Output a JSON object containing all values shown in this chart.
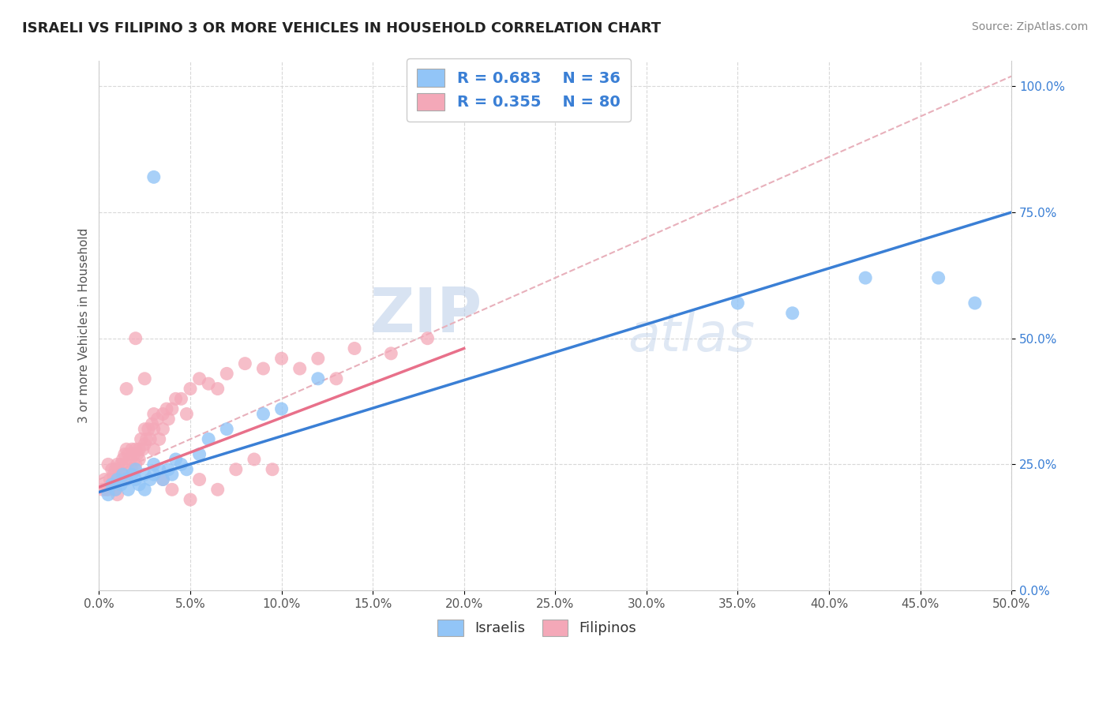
{
  "title": "ISRAELI VS FILIPINO 3 OR MORE VEHICLES IN HOUSEHOLD CORRELATION CHART",
  "source": "Source: ZipAtlas.com",
  "xlim": [
    0.0,
    0.5
  ],
  "ylim": [
    0.0,
    1.05
  ],
  "legend_r_israeli": "R = 0.683",
  "legend_n_israeli": "N = 36",
  "legend_r_filipino": "R = 0.355",
  "legend_n_filipino": "N = 80",
  "israeli_color": "#92c5f7",
  "filipino_color": "#f4a8b8",
  "israeli_line_color": "#3a7fd5",
  "filipino_line_color": "#e8708a",
  "dash_line_color": "#e8b0bb",
  "watermark_zip": "ZIP",
  "watermark_atlas": "atlas",
  "israeli_x": [
    0.005,
    0.007,
    0.009,
    0.01,
    0.012,
    0.013,
    0.015,
    0.016,
    0.018,
    0.02,
    0.02,
    0.022,
    0.025,
    0.025,
    0.028,
    0.03,
    0.03,
    0.033,
    0.035,
    0.038,
    0.04,
    0.042,
    0.045,
    0.048,
    0.055,
    0.06,
    0.07,
    0.09,
    0.1,
    0.12,
    0.35,
    0.38,
    0.42,
    0.46,
    0.48,
    0.03
  ],
  "israeli_y": [
    0.19,
    0.21,
    0.2,
    0.22,
    0.21,
    0.23,
    0.22,
    0.2,
    0.23,
    0.22,
    0.24,
    0.21,
    0.23,
    0.2,
    0.22,
    0.25,
    0.23,
    0.24,
    0.22,
    0.24,
    0.23,
    0.26,
    0.25,
    0.24,
    0.27,
    0.3,
    0.32,
    0.35,
    0.36,
    0.42,
    0.57,
    0.55,
    0.62,
    0.62,
    0.57,
    0.82
  ],
  "filipino_x": [
    0.002,
    0.003,
    0.004,
    0.005,
    0.005,
    0.006,
    0.007,
    0.007,
    0.008,
    0.008,
    0.009,
    0.009,
    0.01,
    0.01,
    0.01,
    0.011,
    0.012,
    0.012,
    0.013,
    0.013,
    0.014,
    0.015,
    0.015,
    0.015,
    0.016,
    0.017,
    0.018,
    0.018,
    0.019,
    0.02,
    0.02,
    0.021,
    0.022,
    0.022,
    0.023,
    0.024,
    0.025,
    0.025,
    0.026,
    0.027,
    0.028,
    0.029,
    0.03,
    0.03,
    0.032,
    0.033,
    0.035,
    0.035,
    0.037,
    0.038,
    0.04,
    0.042,
    0.045,
    0.048,
    0.05,
    0.055,
    0.06,
    0.065,
    0.07,
    0.08,
    0.09,
    0.1,
    0.12,
    0.14,
    0.16,
    0.18,
    0.02,
    0.025,
    0.015,
    0.03,
    0.035,
    0.04,
    0.05,
    0.055,
    0.065,
    0.075,
    0.085,
    0.095,
    0.11,
    0.13
  ],
  "filipino_y": [
    0.2,
    0.22,
    0.2,
    0.25,
    0.2,
    0.22,
    0.24,
    0.21,
    0.23,
    0.22,
    0.24,
    0.2,
    0.25,
    0.22,
    0.19,
    0.24,
    0.25,
    0.22,
    0.26,
    0.23,
    0.27,
    0.28,
    0.25,
    0.22,
    0.27,
    0.26,
    0.28,
    0.24,
    0.27,
    0.28,
    0.25,
    0.27,
    0.28,
    0.26,
    0.3,
    0.28,
    0.32,
    0.29,
    0.3,
    0.32,
    0.3,
    0.33,
    0.32,
    0.28,
    0.34,
    0.3,
    0.35,
    0.32,
    0.36,
    0.34,
    0.36,
    0.38,
    0.38,
    0.35,
    0.4,
    0.42,
    0.41,
    0.4,
    0.43,
    0.45,
    0.44,
    0.46,
    0.46,
    0.48,
    0.47,
    0.5,
    0.5,
    0.42,
    0.4,
    0.35,
    0.22,
    0.2,
    0.18,
    0.22,
    0.2,
    0.24,
    0.26,
    0.24,
    0.44,
    0.42
  ]
}
